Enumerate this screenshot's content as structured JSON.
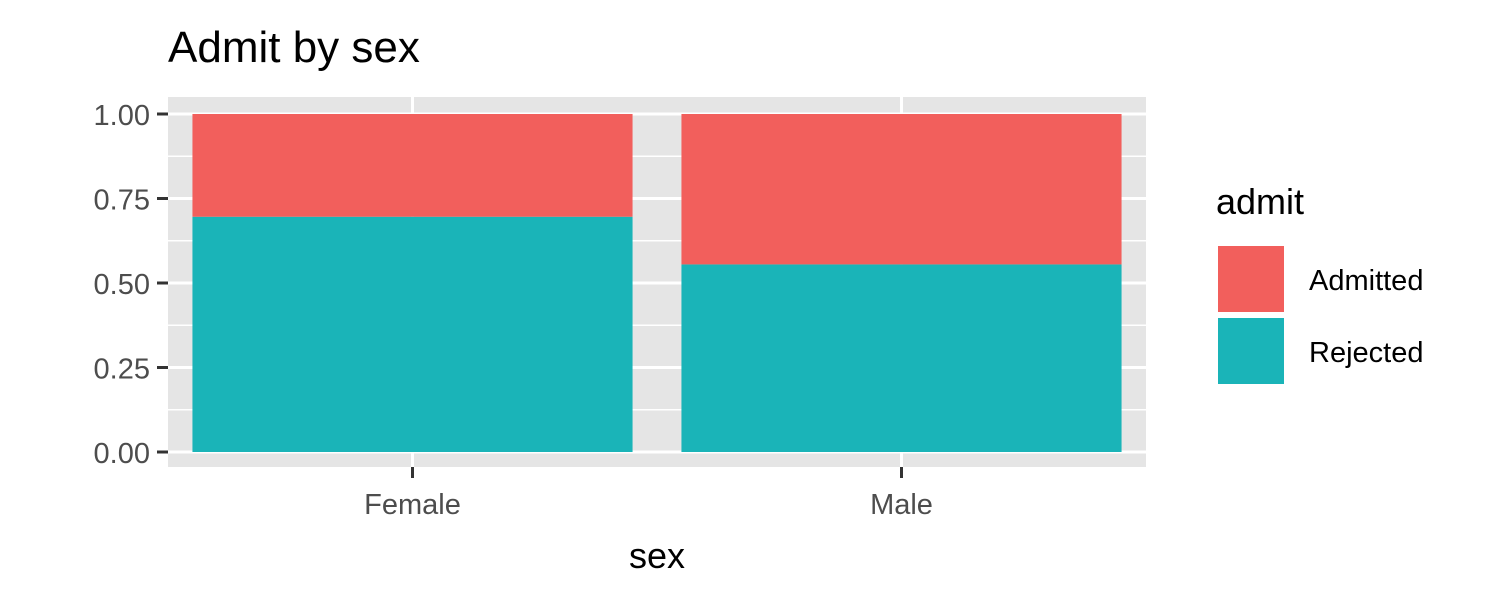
{
  "chart_data": {
    "type": "bar",
    "stacked": true,
    "title": "Admit by sex",
    "xlabel": "sex",
    "ylabel": "",
    "ylim": [
      0,
      1
    ],
    "categories": [
      "Female",
      "Male"
    ],
    "y_ticks": [
      "0.00",
      "0.25",
      "0.50",
      "0.75",
      "1.00"
    ],
    "series": [
      {
        "name": "Rejected",
        "color": "#1AB4B8",
        "values": [
          0.696,
          0.555
        ]
      },
      {
        "name": "Admitted",
        "color": "#F25F5C",
        "values": [
          0.304,
          0.445
        ]
      }
    ],
    "legend": {
      "title": "admit",
      "position": "right",
      "items": [
        {
          "label": "Admitted",
          "color": "#F25F5C"
        },
        {
          "label": "Rejected",
          "color": "#1AB4B8"
        }
      ]
    },
    "grid": true,
    "panel_background": "#E5E5E5"
  }
}
